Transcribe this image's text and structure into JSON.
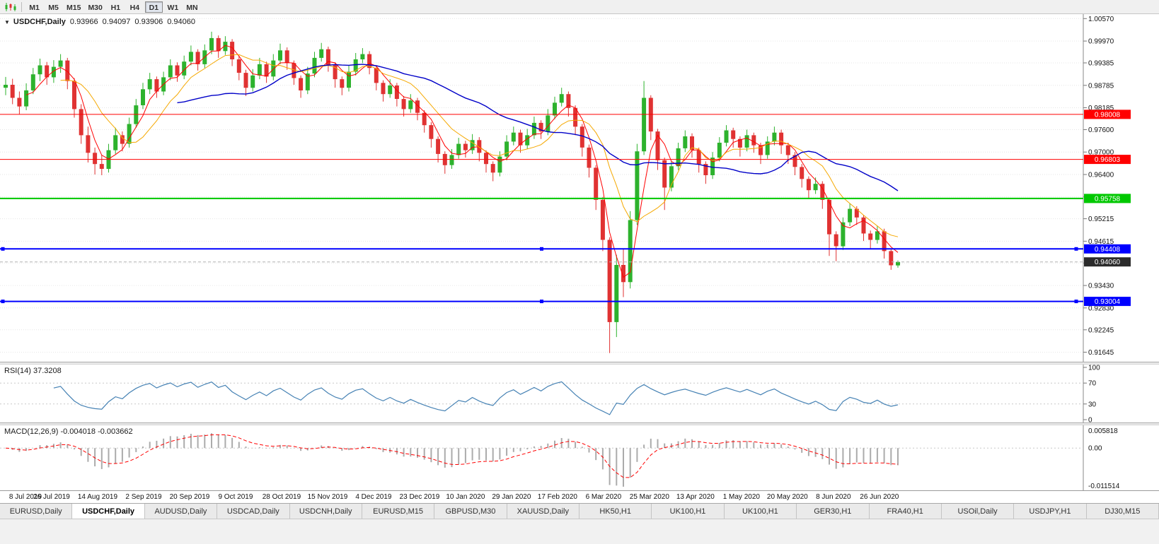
{
  "toolbar": {
    "timeframes": [
      "M1",
      "M5",
      "M15",
      "M30",
      "H1",
      "H4",
      "D1",
      "W1",
      "MN"
    ],
    "active_timeframe": "D1",
    "chart_icon": "candlestick-chart-icon"
  },
  "chart_header": {
    "dropdown_glyph": "▼",
    "symbol_period": "USDCHF,Daily",
    "open": "0.93966",
    "high": "0.94097",
    "low": "0.93906",
    "close": "0.94060"
  },
  "chart_data": {
    "type": "candlestick",
    "symbol": "USDCHF",
    "period": "Daily",
    "up_color": "#2DB22D",
    "down_color": "#E03232",
    "grid_color": "#e6e6e6",
    "y_axis_labels": [
      "1.00570",
      "0.99970",
      "0.99385",
      "0.98785",
      "0.98185",
      "0.97600",
      "0.97000",
      "0.96400",
      "0.95800",
      "0.95215",
      "0.94615",
      "0.94030",
      "0.93430",
      "0.92830",
      "0.92245",
      "0.91645"
    ],
    "price_range": {
      "max": 1.0069,
      "min": 0.9139
    },
    "x_labels": [
      "8 Jul 2019",
      "26 Jul 2019",
      "14 Aug 2019",
      "2 Sep 2019",
      "20 Sep 2019",
      "9 Oct 2019",
      "28 Oct 2019",
      "15 Nov 2019",
      "4 Dec 2019",
      "23 Dec 2019",
      "10 Jan 2020",
      "29 Jan 2020",
      "17 Feb 2020",
      "6 Mar 2020",
      "25 Mar 2020",
      "13 Apr 2020",
      "1 May 2020",
      "20 May 2020",
      "8 Jun 2020",
      "26 Jun 2020"
    ],
    "candles": [
      [
        0.9872,
        0.9901,
        0.9852,
        0.988
      ],
      [
        0.988,
        0.9896,
        0.9828,
        0.9845
      ],
      [
        0.9845,
        0.9862,
        0.9801,
        0.9822
      ],
      [
        0.9822,
        0.9884,
        0.9812,
        0.9865
      ],
      [
        0.9865,
        0.9925,
        0.9855,
        0.9908
      ],
      [
        0.9908,
        0.995,
        0.989,
        0.9932
      ],
      [
        0.9932,
        0.9941,
        0.988,
        0.99
      ],
      [
        0.99,
        0.9946,
        0.9885,
        0.9928
      ],
      [
        0.9928,
        0.9962,
        0.9912,
        0.9945
      ],
      [
        0.9945,
        0.9952,
        0.9868,
        0.989
      ],
      [
        0.989,
        0.9898,
        0.9792,
        0.9815
      ],
      [
        0.9815,
        0.9828,
        0.9722,
        0.9745
      ],
      [
        0.9745,
        0.9768,
        0.9672,
        0.9698
      ],
      [
        0.9698,
        0.9712,
        0.964,
        0.9668
      ],
      [
        0.9668,
        0.9692,
        0.9638,
        0.9655
      ],
      [
        0.9655,
        0.9722,
        0.9645,
        0.9705
      ],
      [
        0.9705,
        0.9765,
        0.9695,
        0.9745
      ],
      [
        0.9745,
        0.9755,
        0.9702,
        0.9722
      ],
      [
        0.9722,
        0.9792,
        0.9712,
        0.9775
      ],
      [
        0.9775,
        0.9842,
        0.9765,
        0.9825
      ],
      [
        0.9825,
        0.9885,
        0.9815,
        0.9868
      ],
      [
        0.9868,
        0.9912,
        0.9855,
        0.9895
      ],
      [
        0.9895,
        0.9902,
        0.9845,
        0.9862
      ],
      [
        0.9862,
        0.9915,
        0.9852,
        0.99
      ],
      [
        0.99,
        0.9948,
        0.9892,
        0.9932
      ],
      [
        0.9932,
        0.994,
        0.9888,
        0.9905
      ],
      [
        0.9905,
        0.9958,
        0.9895,
        0.9942
      ],
      [
        0.9942,
        0.9985,
        0.9932,
        0.9968
      ],
      [
        0.9968,
        0.9975,
        0.9918,
        0.9935
      ],
      [
        0.9935,
        0.9988,
        0.9925,
        0.9972
      ],
      [
        0.9972,
        1.0022,
        0.9962,
        1.0005
      ],
      [
        1.0005,
        1.0012,
        0.9952,
        0.997
      ],
      [
        0.997,
        1.001,
        0.996,
        0.9995
      ],
      [
        0.9995,
        1.0002,
        0.993,
        0.9948
      ],
      [
        0.9948,
        0.9958,
        0.9892,
        0.9912
      ],
      [
        0.9912,
        0.992,
        0.985,
        0.9872
      ],
      [
        0.9872,
        0.9922,
        0.9862,
        0.9905
      ],
      [
        0.9905,
        0.9952,
        0.9895,
        0.9935
      ],
      [
        0.9935,
        0.9942,
        0.9885,
        0.9902
      ],
      [
        0.9902,
        0.9962,
        0.9892,
        0.9945
      ],
      [
        0.9945,
        0.999,
        0.9935,
        0.9972
      ],
      [
        0.9972,
        0.998,
        0.992,
        0.9938
      ],
      [
        0.9938,
        0.9945,
        0.988,
        0.9898
      ],
      [
        0.9898,
        0.9905,
        0.9845,
        0.9865
      ],
      [
        0.9865,
        0.9928,
        0.9855,
        0.991
      ],
      [
        0.991,
        0.9968,
        0.99,
        0.9952
      ],
      [
        0.9952,
        0.9992,
        0.9942,
        0.9975
      ],
      [
        0.9975,
        0.9982,
        0.9915,
        0.9932
      ],
      [
        0.9932,
        0.994,
        0.9872,
        0.9895
      ],
      [
        0.9895,
        0.9902,
        0.9852,
        0.9872
      ],
      [
        0.9872,
        0.9932,
        0.9862,
        0.9915
      ],
      [
        0.9915,
        0.9965,
        0.9905,
        0.9948
      ],
      [
        0.9948,
        0.9978,
        0.9938,
        0.9962
      ],
      [
        0.9962,
        0.997,
        0.9908,
        0.9925
      ],
      [
        0.9925,
        0.9932,
        0.9865,
        0.9885
      ],
      [
        0.9885,
        0.9892,
        0.9835,
        0.9855
      ],
      [
        0.9855,
        0.9895,
        0.9845,
        0.9878
      ],
      [
        0.9878,
        0.9885,
        0.9822,
        0.9842
      ],
      [
        0.9842,
        0.985,
        0.9795,
        0.9815
      ],
      [
        0.9815,
        0.9855,
        0.9805,
        0.9838
      ],
      [
        0.9838,
        0.9845,
        0.9785,
        0.9805
      ],
      [
        0.9805,
        0.9812,
        0.9752,
        0.9772
      ],
      [
        0.9772,
        0.978,
        0.9712,
        0.9735
      ],
      [
        0.9735,
        0.9742,
        0.9672,
        0.9695
      ],
      [
        0.9695,
        0.9702,
        0.9642,
        0.9665
      ],
      [
        0.9665,
        0.9708,
        0.9655,
        0.9692
      ],
      [
        0.9692,
        0.9738,
        0.9682,
        0.9722
      ],
      [
        0.9722,
        0.973,
        0.9685,
        0.9705
      ],
      [
        0.9705,
        0.9748,
        0.9695,
        0.9732
      ],
      [
        0.9732,
        0.974,
        0.9675,
        0.9698
      ],
      [
        0.9698,
        0.9705,
        0.9645,
        0.9668
      ],
      [
        0.9668,
        0.9675,
        0.9622,
        0.9645
      ],
      [
        0.9645,
        0.9702,
        0.9635,
        0.9688
      ],
      [
        0.9688,
        0.9745,
        0.9678,
        0.9728
      ],
      [
        0.9728,
        0.9768,
        0.9718,
        0.9752
      ],
      [
        0.9752,
        0.976,
        0.9698,
        0.9718
      ],
      [
        0.9718,
        0.9762,
        0.9708,
        0.9745
      ],
      [
        0.9745,
        0.9795,
        0.9735,
        0.9778
      ],
      [
        0.9778,
        0.9785,
        0.9735,
        0.9755
      ],
      [
        0.9755,
        0.9815,
        0.9745,
        0.9798
      ],
      [
        0.9798,
        0.9848,
        0.9788,
        0.9832
      ],
      [
        0.9832,
        0.9872,
        0.9822,
        0.9855
      ],
      [
        0.9855,
        0.9862,
        0.9795,
        0.9818
      ],
      [
        0.9818,
        0.9825,
        0.9745,
        0.9768
      ],
      [
        0.9768,
        0.9775,
        0.9688,
        0.9712
      ],
      [
        0.9712,
        0.972,
        0.9632,
        0.9658
      ],
      [
        0.9658,
        0.9665,
        0.9545,
        0.9572
      ],
      [
        0.9572,
        0.958,
        0.9435,
        0.9465
      ],
      [
        0.9465,
        0.9472,
        0.9162,
        0.9245
      ],
      [
        0.9245,
        0.9425,
        0.9205,
        0.9398
      ],
      [
        0.9398,
        0.9442,
        0.9312,
        0.9352
      ],
      [
        0.9352,
        0.9542,
        0.9335,
        0.9518
      ],
      [
        0.9518,
        0.9722,
        0.9505,
        0.9702
      ],
      [
        0.9702,
        0.989,
        0.9692,
        0.9845
      ],
      [
        0.9845,
        0.9852,
        0.9732,
        0.9755
      ],
      [
        0.9755,
        0.9762,
        0.9652,
        0.9678
      ],
      [
        0.9678,
        0.9685,
        0.9545,
        0.9605
      ],
      [
        0.9605,
        0.9675,
        0.9595,
        0.9662
      ],
      [
        0.9662,
        0.9725,
        0.9652,
        0.971
      ],
      [
        0.971,
        0.9758,
        0.97,
        0.9742
      ],
      [
        0.9742,
        0.975,
        0.9685,
        0.9705
      ],
      [
        0.9705,
        0.9712,
        0.9645,
        0.9668
      ],
      [
        0.9668,
        0.9675,
        0.9615,
        0.9638
      ],
      [
        0.9638,
        0.97,
        0.9628,
        0.9685
      ],
      [
        0.9685,
        0.974,
        0.9675,
        0.9725
      ],
      [
        0.9725,
        0.9772,
        0.9715,
        0.9758
      ],
      [
        0.9758,
        0.9765,
        0.9712,
        0.9735
      ],
      [
        0.9735,
        0.9742,
        0.9688,
        0.9712
      ],
      [
        0.9712,
        0.976,
        0.9702,
        0.9745
      ],
      [
        0.9745,
        0.9752,
        0.9698,
        0.9718
      ],
      [
        0.9718,
        0.9725,
        0.9668,
        0.9692
      ],
      [
        0.9692,
        0.9742,
        0.9682,
        0.9728
      ],
      [
        0.9728,
        0.9768,
        0.9718,
        0.9752
      ],
      [
        0.9752,
        0.976,
        0.9695,
        0.9718
      ],
      [
        0.9718,
        0.9725,
        0.9668,
        0.9692
      ],
      [
        0.9692,
        0.97,
        0.9638,
        0.966
      ],
      [
        0.966,
        0.9668,
        0.9605,
        0.9628
      ],
      [
        0.9628,
        0.9635,
        0.9575,
        0.9598
      ],
      [
        0.9598,
        0.9632,
        0.9588,
        0.9615
      ],
      [
        0.9615,
        0.9622,
        0.9548,
        0.9572
      ],
      [
        0.9572,
        0.9578,
        0.9422,
        0.948
      ],
      [
        0.948,
        0.9488,
        0.9408,
        0.9448
      ],
      [
        0.9448,
        0.9525,
        0.9438,
        0.9512
      ],
      [
        0.9512,
        0.9562,
        0.9502,
        0.9548
      ],
      [
        0.9548,
        0.9555,
        0.9505,
        0.9525
      ],
      [
        0.9525,
        0.9532,
        0.9462,
        0.9482
      ],
      [
        0.9482,
        0.949,
        0.9442,
        0.9465
      ],
      [
        0.9465,
        0.9502,
        0.9455,
        0.9488
      ],
      [
        0.9488,
        0.9495,
        0.9415,
        0.9435
      ],
      [
        0.9435,
        0.9442,
        0.9385,
        0.9397
      ],
      [
        0.93966,
        0.94097,
        0.93906,
        0.9406
      ]
    ],
    "moving_averages": [
      {
        "period": 4,
        "color": "#FF0000",
        "width": 1
      },
      {
        "period": 9,
        "color": "#F5A800",
        "width": 1
      },
      {
        "period": 26,
        "color": "#0000C8",
        "width": 1.4
      }
    ],
    "levels": [
      {
        "price": "0.98008",
        "value": 0.98008,
        "color": "#FF0000",
        "width": 1,
        "handles": false
      },
      {
        "price": "0.96803",
        "value": 0.96803,
        "color": "#FF0000",
        "width": 1,
        "handles": false
      },
      {
        "price": "0.95758",
        "value": 0.95758,
        "color": "#00C800",
        "width": 2,
        "handles": false
      },
      {
        "price": "0.94408",
        "value": 0.94408,
        "color": "#0000FF",
        "width": 2,
        "handles": true
      },
      {
        "price": "0.93004",
        "value": 0.93004,
        "color": "#0000FF",
        "width": 2,
        "handles": true
      }
    ],
    "current_price": {
      "label": "0.94060",
      "value": 0.9406,
      "line_color": "#b4b4b4",
      "badge_color": "#2b2b2b"
    },
    "rsi": {
      "label": "RSI(14) 37.3208",
      "levels": [
        "100",
        "70",
        "30",
        "0"
      ],
      "color": "#4682B4"
    },
    "macd": {
      "label": "MACD(12,26,9) -0.004018 -0.003662",
      "axis": [
        "0.005818",
        "0.00",
        "-0.011514"
      ],
      "hist_color": "#ABABAB",
      "signal_color": "#FF0000"
    }
  },
  "tabs": {
    "items": [
      {
        "label": "EURUSD,Daily",
        "active": false
      },
      {
        "label": "USDCHF,Daily",
        "active": true
      },
      {
        "label": "AUDUSD,Daily",
        "active": false
      },
      {
        "label": "USDCAD,Daily",
        "active": false
      },
      {
        "label": "USDCNH,Daily",
        "active": false
      },
      {
        "label": "EURUSD,M15",
        "active": false
      },
      {
        "label": "GBPUSD,M30",
        "active": false
      },
      {
        "label": "XAUUSD,Daily",
        "active": false
      },
      {
        "label": "HK50,H1",
        "active": false
      },
      {
        "label": "UK100,H1",
        "active": false
      },
      {
        "label": "UK100,H1",
        "active": false
      },
      {
        "label": "GER30,H1",
        "active": false
      },
      {
        "label": "FRA40,H1",
        "active": false
      },
      {
        "label": "USOil,Daily",
        "active": false
      },
      {
        "label": "USDJPY,H1",
        "active": false
      },
      {
        "label": "DJ30,M15",
        "active": false
      }
    ]
  }
}
